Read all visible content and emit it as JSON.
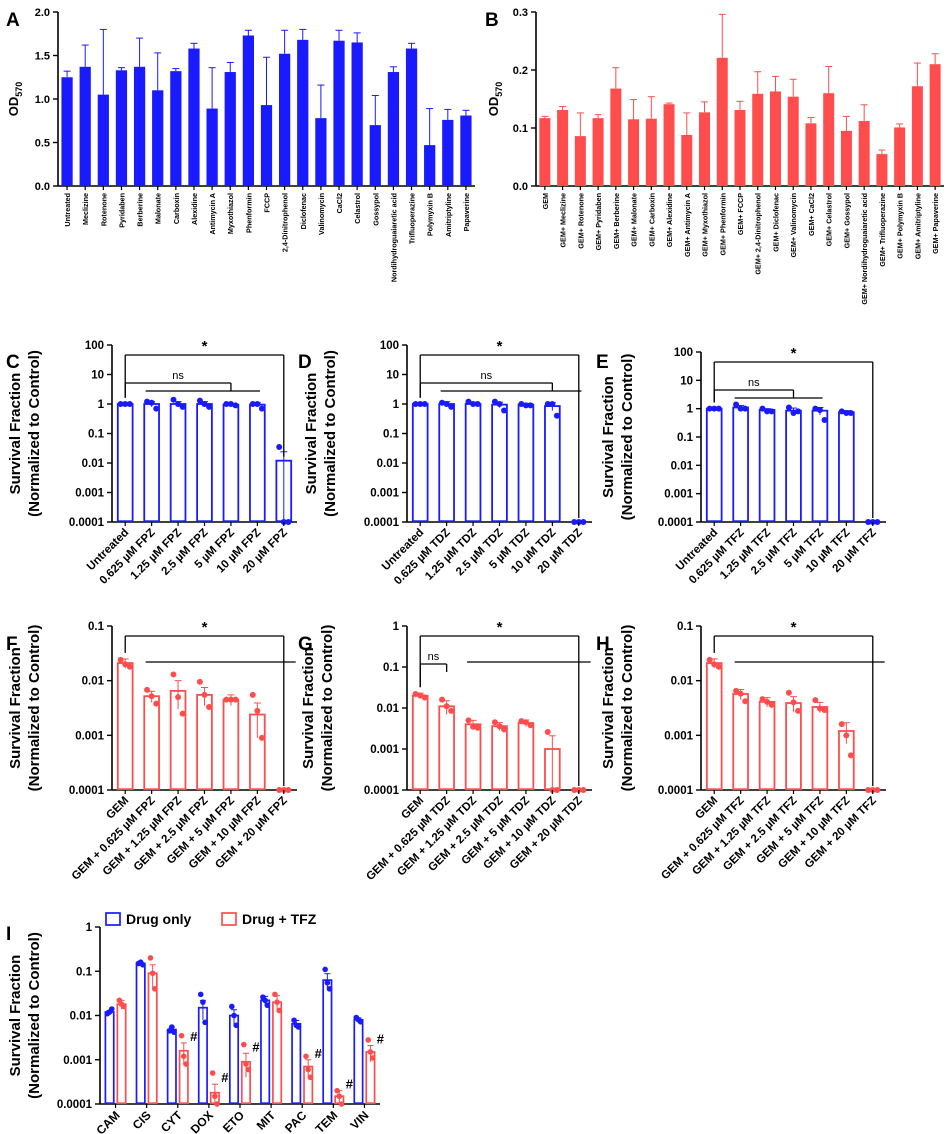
{
  "colors": {
    "blue": "#1a1aff",
    "red": "#ff4d4d",
    "axis": "#000000"
  },
  "chart_data": [
    {
      "id": "A",
      "panel_label": "A",
      "type": "bar",
      "scale": "linear",
      "ylabel": "OD",
      "ylabel_sub": "570",
      "ylim": [
        0,
        2.0
      ],
      "yticks": [
        "0.0",
        "0.5",
        "1.0",
        "1.5",
        "2.0"
      ],
      "yticks_values": [
        0,
        0.5,
        1.0,
        1.5,
        2.0
      ],
      "color": "#1a1aff",
      "categories": [
        "Untreated",
        "Meclizine",
        "Rotenone",
        "Pyridaben",
        "Berberine",
        "Malonate",
        "Carboxin",
        "Alexidine",
        "Antimycin A",
        "Myxothiazol",
        "Phenformin",
        "FCCP",
        "2,4-Dinitrophenol",
        "Diclofenac",
        "Valinomycin",
        "CaCl2",
        "Celastrol",
        "Gossypol",
        "Nordihydroguaiaretic acid",
        "Trifluoperazine",
        "Polymyxin B",
        "Amitriptyline",
        "Papaverine"
      ],
      "values": [
        1.25,
        1.37,
        1.05,
        1.33,
        1.37,
        1.1,
        1.32,
        1.58,
        0.89,
        1.31,
        1.73,
        0.93,
        1.52,
        1.68,
        0.78,
        1.67,
        1.65,
        0.7,
        1.31,
        1.58,
        0.47,
        0.76,
        0.81
      ],
      "errors": [
        0.07,
        0.25,
        0.75,
        0.03,
        0.33,
        0.43,
        0.03,
        0.06,
        0.47,
        0.11,
        0.06,
        0.55,
        0.27,
        0.12,
        0.38,
        0.12,
        0.11,
        0.34,
        0.06,
        0.06,
        0.42,
        0.12,
        0.06
      ]
    },
    {
      "id": "B",
      "panel_label": "B",
      "type": "bar",
      "scale": "linear",
      "ylabel": "OD",
      "ylabel_sub": "570",
      "ylim": [
        0,
        0.3
      ],
      "yticks": [
        "0.0",
        "0.1",
        "0.2",
        "0.3"
      ],
      "yticks_values": [
        0,
        0.1,
        0.2,
        0.3
      ],
      "color": "#ff4d4d",
      "categories": [
        "GEM",
        "GEM+ Meclizine",
        "GEM+ Rotenone",
        "GEM+ Pyridaben",
        "GEM+ Berberine",
        "GEM+ Malonate",
        "GEM+ Carboxin",
        "GEM+ Alexidine",
        "GEM+ Antimycin A",
        "GEM+ Myxothiazol",
        "GEM+ Phenformin",
        "GEM+ FCCP",
        "GEM+ 2,4-Dinitrophenol",
        "GEM+ Diclofenac",
        "GEM+ Valinomycin",
        "GEM+ CaCl2",
        "GEM+ Celastrol",
        "GEM+ Gossypol",
        "GEM+ Nordihydroguaiaretic acid",
        "GEM+ Trifluoperazine",
        "GEM+ Polymyxin B",
        "GEM+ Amitriptyline",
        "GEM+ Papaverine"
      ],
      "values": [
        0.117,
        0.131,
        0.086,
        0.117,
        0.168,
        0.115,
        0.116,
        0.141,
        0.088,
        0.127,
        0.221,
        0.131,
        0.159,
        0.163,
        0.154,
        0.108,
        0.16,
        0.095,
        0.112,
        0.055,
        0.101,
        0.172,
        0.21
      ],
      "errors": [
        0.003,
        0.006,
        0.04,
        0.006,
        0.036,
        0.034,
        0.038,
        0.002,
        0.038,
        0.018,
        0.075,
        0.015,
        0.038,
        0.026,
        0.03,
        0.01,
        0.046,
        0.025,
        0.028,
        0.007,
        0.006,
        0.04,
        0.018
      ]
    },
    {
      "id": "C",
      "panel_label": "C",
      "type": "bar",
      "scale": "log",
      "ylabel": "Survival Fraction",
      "ylabel2": "(Normalized to Control)",
      "ylim": [
        0.0001,
        100
      ],
      "yticks": [
        "0.0001",
        "0.001",
        "0.01",
        "0.1",
        "1",
        "10",
        "100"
      ],
      "yticks_values": [
        0.0001,
        0.001,
        0.01,
        0.1,
        1,
        10,
        100
      ],
      "color": "#1a1aff",
      "categories": [
        "Untreated",
        "0.625 µM FPZ",
        "1.25 µM FPZ",
        "2.5 µM FPZ",
        "5 µM FPZ",
        "10 µM FPZ",
        "20 µM FPZ"
      ],
      "values": [
        1.0,
        1.0,
        1.0,
        1.0,
        0.95,
        0.95,
        0.012
      ],
      "errors": [
        0.02,
        0.2,
        0.2,
        0.2,
        0.08,
        0.15,
        0.012
      ],
      "points": [
        [
          1,
          1,
          1
        ],
        [
          1.2,
          1.1,
          0.7
        ],
        [
          1.4,
          1,
          0.8
        ],
        [
          1.3,
          1,
          0.8
        ],
        [
          1,
          1,
          0.9
        ],
        [
          1,
          1,
          0.7
        ],
        [
          0.035,
          0.0001,
          0.0001
        ]
      ],
      "sig": [
        {
          "label": "ns",
          "from": 0,
          "to": [
            1,
            2,
            3,
            4
          ]
        },
        {
          "label": "*",
          "from": 0,
          "to": [
            6
          ]
        }
      ]
    },
    {
      "id": "D",
      "panel_label": "D",
      "type": "bar",
      "scale": "log",
      "ylabel": "Survival Fraction",
      "ylabel2": "(Normalized to Control)",
      "ylim": [
        0.0001,
        100
      ],
      "yticks": [
        "0.0001",
        "0.001",
        "0.01",
        "0.1",
        "1",
        "10",
        "100"
      ],
      "yticks_values": [
        0.0001,
        0.001,
        0.01,
        0.1,
        1,
        10,
        100
      ],
      "color": "#1a1aff",
      "categories": [
        "Untreated",
        "0.625 µM TDZ",
        "1.25 µM TDZ",
        "2.5 µM TDZ",
        "5 µM TDZ",
        "10 µM TDZ",
        "20 µM TDZ"
      ],
      "values": [
        1.0,
        1.0,
        1.0,
        0.95,
        0.95,
        0.85,
        0.0001
      ],
      "errors": [
        0.02,
        0.2,
        0.15,
        0.2,
        0.1,
        0.25,
        0
      ],
      "points": [
        [
          1,
          1,
          1
        ],
        [
          1.1,
          1,
          0.8
        ],
        [
          1.2,
          1,
          1
        ],
        [
          1.2,
          1,
          0.6
        ],
        [
          1,
          0.9,
          0.9
        ],
        [
          1,
          1,
          0.4
        ],
        [
          0.0001,
          0.0001,
          0.0001
        ]
      ],
      "sig": [
        {
          "label": "ns",
          "from": 0,
          "to": [
            1,
            2,
            3,
            4,
            5
          ]
        },
        {
          "label": "*",
          "from": 0,
          "to": [
            6
          ]
        }
      ]
    },
    {
      "id": "E",
      "panel_label": "E",
      "type": "bar",
      "scale": "log",
      "ylabel": "Survival Fraction",
      "ylabel2": "(Normalized to Control)",
      "ylim": [
        0.0001,
        100
      ],
      "yticks": [
        "0.0001",
        "0.001",
        "0.01",
        "0.1",
        "1",
        "10",
        "100"
      ],
      "yticks_values": [
        0.0001,
        0.001,
        0.01,
        0.1,
        1,
        10,
        100
      ],
      "color": "#1a1aff",
      "categories": [
        "Untreated",
        "0.625 µM TFZ",
        "1.25 µM TFZ",
        "2.5 µM TFZ",
        "5 µM TFZ",
        "10 µM TFZ",
        "20 µM TFZ"
      ],
      "values": [
        1.0,
        1.1,
        0.9,
        0.85,
        0.85,
        0.75,
        0.0001
      ],
      "errors": [
        0.02,
        0.2,
        0.1,
        0.2,
        0.25,
        0.1,
        0
      ],
      "points": [
        [
          1,
          1,
          1
        ],
        [
          1.4,
          1,
          1
        ],
        [
          1,
          0.8,
          0.8
        ],
        [
          1.1,
          0.7,
          0.8
        ],
        [
          1,
          0.9,
          0.4
        ],
        [
          0.8,
          0.7,
          0.7
        ],
        [
          0.0001,
          0.0001,
          0.0001
        ]
      ],
      "sig": [
        {
          "label": "ns",
          "from": 0,
          "to": [
            1,
            2,
            3
          ]
        },
        {
          "label": "*",
          "from": 0,
          "to": [
            6
          ]
        }
      ]
    },
    {
      "id": "F",
      "panel_label": "F",
      "type": "bar",
      "scale": "log",
      "ylabel": "Survival Fraction",
      "ylabel2": "(Normalized to Control)",
      "ylim": [
        0.0001,
        0.1
      ],
      "yticks": [
        "0.0001",
        "0.001",
        "0.01",
        "0.1"
      ],
      "yticks_values": [
        0.0001,
        0.001,
        0.01,
        0.1
      ],
      "color": "#ff4d4d",
      "categories": [
        "GEM",
        "GEM + 0.625 µM FPZ",
        "GEM + 1.25 µM FPZ",
        "GEM + 2.5 µM FPZ",
        "GEM + 5 µM FPZ",
        "GEM + 10 µM FPZ",
        "GEM + 20 µM FPZ"
      ],
      "values": [
        0.021,
        0.0052,
        0.0065,
        0.0055,
        0.0045,
        0.0024,
        0.0001
      ],
      "errors": [
        0.004,
        0.0012,
        0.0035,
        0.002,
        0.001,
        0.0015,
        0
      ],
      "points": [
        [
          0.024,
          0.02,
          0.018
        ],
        [
          0.0068,
          0.0052,
          0.0038
        ],
        [
          0.013,
          0.005,
          0.0025
        ],
        [
          0.0095,
          0.0055,
          0.0033
        ],
        [
          0.0045,
          0.0045,
          0.0045
        ],
        [
          0.0055,
          0.0028,
          0.0009
        ],
        [
          0.0001,
          0.0001,
          0.0001
        ]
      ],
      "sig": [
        {
          "label": "*",
          "from": 0,
          "to": [
            1,
            2,
            3,
            4,
            5,
            6
          ]
        }
      ]
    },
    {
      "id": "G",
      "panel_label": "G",
      "type": "bar",
      "scale": "log",
      "ylabel": "Survival Fraction",
      "ylabel2": "(Normalized to Control)",
      "ylim": [
        0.0001,
        1
      ],
      "yticks": [
        "0.0001",
        "0.001",
        "0.01",
        "0.1",
        "1"
      ],
      "yticks_values": [
        0.0001,
        0.001,
        0.01,
        0.1,
        1
      ],
      "color": "#ff4d4d",
      "categories": [
        "GEM",
        "GEM + 0.625 µM TDZ",
        "GEM + 1.25 µM TDZ",
        "GEM + 2.5 µM TDZ",
        "GEM + 5 µM TDZ",
        "GEM + 10 µM TDZ",
        "GEM + 20 µM TDZ"
      ],
      "values": [
        0.02,
        0.011,
        0.004,
        0.0036,
        0.0043,
        0.001,
        0.0001
      ],
      "errors": [
        0.003,
        0.004,
        0.001,
        0.0008,
        0.0008,
        0.0011,
        0
      ],
      "points": [
        [
          0.022,
          0.02,
          0.018
        ],
        [
          0.016,
          0.011,
          0.0085
        ],
        [
          0.005,
          0.0035,
          0.0033
        ],
        [
          0.0045,
          0.0036,
          0.003
        ],
        [
          0.0048,
          0.0045,
          0.0038
        ],
        [
          0.0026,
          0.0001,
          0.0001
        ],
        [
          0.0001,
          0.0001,
          0.0001
        ]
      ],
      "sig": [
        {
          "label": "ns",
          "from": 0,
          "to": [
            1
          ]
        },
        {
          "label": "*",
          "from": 0,
          "to": [
            2,
            3,
            4,
            5,
            6
          ]
        }
      ]
    },
    {
      "id": "H",
      "panel_label": "H",
      "type": "bar",
      "scale": "log",
      "ylabel": "Survival Fraction",
      "ylabel2": "(Normalized to Control)",
      "ylim": [
        0.0001,
        0.1
      ],
      "yticks": [
        "0.0001",
        "0.001",
        "0.01",
        "0.1"
      ],
      "yticks_values": [
        0.0001,
        0.001,
        0.01,
        0.1
      ],
      "color": "#ff4d4d",
      "categories": [
        "GEM",
        "GEM + 0.625 µM TFZ",
        "GEM + 1.25 µM TFZ",
        "GEM + 2.5 µM TFZ",
        "GEM + 5 µM TFZ",
        "GEM + 10 µM TFZ",
        "GEM + 20 µM TFZ"
      ],
      "values": [
        0.021,
        0.0057,
        0.0041,
        0.0039,
        0.0033,
        0.0012,
        0.0001
      ],
      "errors": [
        0.004,
        0.0012,
        0.0008,
        0.0012,
        0.0007,
        0.0005,
        0
      ],
      "points": [
        [
          0.024,
          0.02,
          0.018
        ],
        [
          0.0065,
          0.0058,
          0.0042
        ],
        [
          0.0046,
          0.0041,
          0.0036
        ],
        [
          0.006,
          0.004,
          0.0028
        ],
        [
          0.0044,
          0.0031,
          0.0029
        ],
        [
          0.0016,
          0.001,
          0.00043
        ],
        [
          0.0001,
          0.0001,
          0.0001
        ]
      ],
      "sig": [
        {
          "label": "*",
          "from": 0,
          "to": [
            1,
            2,
            3,
            4,
            5,
            6
          ]
        }
      ]
    },
    {
      "id": "I",
      "panel_label": "I",
      "type": "grouped-bar",
      "scale": "log",
      "ylabel": "Survival Fraction",
      "ylabel2": "(Normalized to Control)",
      "ylim": [
        0.0001,
        1
      ],
      "yticks": [
        "0.0001",
        "0.001",
        "0.01",
        "0.1",
        "1"
      ],
      "yticks_values": [
        0.0001,
        0.001,
        0.01,
        0.1,
        1
      ],
      "categories": [
        "CAM",
        "CIS",
        "CYT",
        "DOX",
        "ETO",
        "MIT",
        "PAC",
        "TEM",
        "VIN"
      ],
      "legend": [
        "Drug only",
        "Drug + TFZ"
      ],
      "annotation": "#",
      "series": [
        {
          "name": "Drug only",
          "color": "#1a1aff",
          "values": [
            0.012,
            0.15,
            0.0048,
            0.015,
            0.01,
            0.022,
            0.0065,
            0.063,
            0.008
          ],
          "errors": [
            0.001,
            0.005,
            0.0006,
            0.007,
            0.0035,
            0.005,
            0.0012,
            0.025,
            0.0008
          ],
          "points": [
            [
              0.011,
              0.012,
              0.014
            ],
            [
              0.15,
              0.16,
              0.14
            ],
            [
              0.0045,
              0.0055,
              0.0042
            ],
            [
              0.03,
              0.02,
              0.007
            ],
            [
              0.016,
              0.01,
              0.006
            ],
            [
              0.026,
              0.022,
              0.017
            ],
            [
              0.0078,
              0.006,
              0.0055
            ],
            [
              0.11,
              0.055,
              0.04
            ],
            [
              0.009,
              0.008,
              0.0072
            ]
          ]
        },
        {
          "name": "Drug + TFZ",
          "color": "#ff4d4d",
          "values": [
            0.018,
            0.09,
            0.0016,
            0.00018,
            0.0009,
            0.02,
            0.0007,
            0.00015,
            0.0015
          ],
          "errors": [
            0.004,
            0.05,
            0.0008,
            0.0001,
            0.0005,
            0.008,
            0.0003,
            5e-05,
            0.0006
          ],
          "points": [
            [
              0.022,
              0.018,
              0.016
            ],
            [
              0.2,
              0.09,
              0.04
            ],
            [
              0.0035,
              0.0012,
              0.0008
            ],
            [
              0.0005,
              0.00015,
              0.0001
            ],
            [
              0.0022,
              0.0008,
              0.0006
            ],
            [
              0.03,
              0.02,
              0.013
            ],
            [
              0.0012,
              0.0006,
              0.0004
            ],
            [
              0.0002,
              0.00015,
              0.0001
            ],
            [
              0.0028,
              0.0015,
              0.0011
            ]
          ],
          "marks": [
            false,
            false,
            true,
            true,
            true,
            false,
            true,
            true,
            true
          ]
        }
      ]
    }
  ]
}
